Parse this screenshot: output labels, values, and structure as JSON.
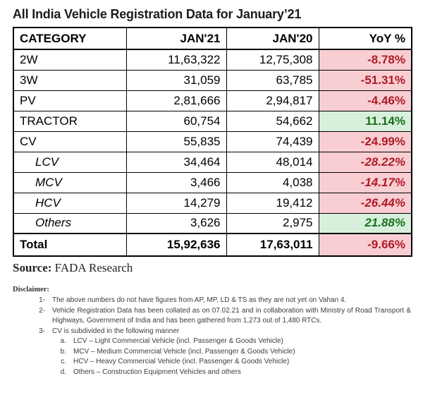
{
  "title": "All India Vehicle Registration Data for January’21",
  "table": {
    "headers": [
      "CATEGORY",
      "JAN'21",
      "JAN'20",
      "YoY %"
    ],
    "rows": [
      {
        "category": "2W",
        "jan21": "11,63,322",
        "jan20": "12,75,308",
        "yoy": "-8.78%",
        "trend": "negative",
        "style": "main"
      },
      {
        "category": "3W",
        "jan21": "31,059",
        "jan20": "63,785",
        "yoy": "-51.31%",
        "trend": "negative",
        "style": "main"
      },
      {
        "category": "PV",
        "jan21": "2,81,666",
        "jan20": "2,94,817",
        "yoy": "-4.46%",
        "trend": "negative",
        "style": "main"
      },
      {
        "category": "TRACTOR",
        "jan21": "60,754",
        "jan20": "54,662",
        "yoy": "11.14%",
        "trend": "positive",
        "style": "main"
      },
      {
        "category": "CV",
        "jan21": "55,835",
        "jan20": "74,439",
        "yoy": "-24.99%",
        "trend": "negative",
        "style": "main"
      },
      {
        "category": "LCV",
        "jan21": "34,464",
        "jan20": "48,014",
        "yoy": "-28.22%",
        "trend": "negative",
        "style": "sub"
      },
      {
        "category": "MCV",
        "jan21": "3,466",
        "jan20": "4,038",
        "yoy": "-14.17%",
        "trend": "negative",
        "style": "sub"
      },
      {
        "category": "HCV",
        "jan21": "14,279",
        "jan20": "19,412",
        "yoy": "-26.44%",
        "trend": "negative",
        "style": "sub"
      },
      {
        "category": "Others",
        "jan21": "3,626",
        "jan20": "2,975",
        "yoy": "21.88%",
        "trend": "positive",
        "style": "sub"
      },
      {
        "category": "Total",
        "jan21": "15,92,636",
        "jan20": "17,63,011",
        "yoy": "-9.66%",
        "trend": "negative",
        "style": "total"
      }
    ]
  },
  "source": {
    "label": "Source:",
    "text": "FADA Research"
  },
  "disclaimer": {
    "heading": "Disclaimer:",
    "items": [
      {
        "marker": "1-",
        "text": "The above numbers do not have figures from AP, MP, LD & TS as they are not yet on Vahan 4.",
        "subitems": []
      },
      {
        "marker": "2-",
        "text": "Vehicle Registration Data has been collated as on 07.02.21 and in collaboration with Ministry of Road Transport & Highways, Government of India and has been gathered from 1,273 out of 1,480 RTCs.",
        "subitems": []
      },
      {
        "marker": "3-",
        "text": "CV is subdivided in the following manner",
        "subitems": [
          {
            "marker": "a.",
            "text": "LCV – Light Commercial Vehicle (incl. Passenger & Goods Vehicle)"
          },
          {
            "marker": "b.",
            "text": "MCV – Medium Commercial Vehicle (incl. Passenger & Goods Vehicle)"
          },
          {
            "marker": "c.",
            "text": "HCV – Heavy Commercial Vehicle (incl. Passenger & Goods Vehicle)"
          },
          {
            "marker": "d.",
            "text": "Others – Construction Equipment Vehicles and others"
          }
        ]
      }
    ]
  },
  "colors": {
    "negative_bg": "#f8ced3",
    "negative_text": "#ae1b24",
    "positive_bg": "#d7f0db",
    "positive_text": "#17701d",
    "border": "#000000"
  },
  "chart_data": {
    "type": "table",
    "title": "All India Vehicle Registration Data for January’21",
    "columns": [
      "CATEGORY",
      "JAN'21",
      "JAN'20",
      "YoY %"
    ],
    "categories": [
      "2W",
      "3W",
      "PV",
      "TRACTOR",
      "CV",
      "LCV",
      "MCV",
      "HCV",
      "Others",
      "Total"
    ],
    "series": [
      {
        "name": "JAN'21",
        "values": [
          1163322,
          31059,
          281666,
          60754,
          55835,
          34464,
          3466,
          14279,
          3626,
          1592636
        ]
      },
      {
        "name": "JAN'20",
        "values": [
          1275308,
          63785,
          294817,
          54662,
          74439,
          48014,
          4038,
          19412,
          2975,
          1763011
        ]
      },
      {
        "name": "YoY %",
        "values": [
          -8.78,
          -51.31,
          -4.46,
          11.14,
          -24.99,
          -28.22,
          -14.17,
          -26.44,
          21.88,
          -9.66
        ]
      }
    ],
    "notes": "Sub-rows LCV, MCV, HCV, Others are subdivisions of CV. Red cells = YoY decline, green cells = YoY growth.",
    "source": "FADA Research"
  }
}
